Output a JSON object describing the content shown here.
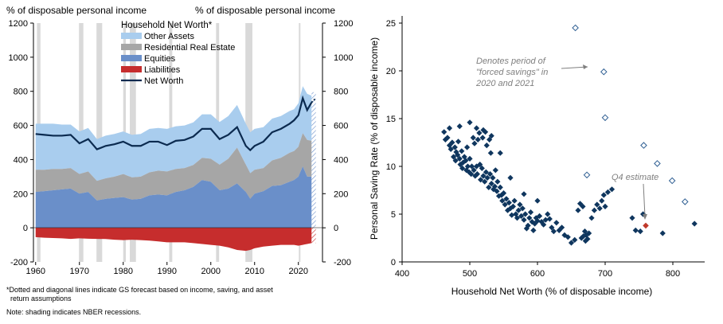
{
  "left": {
    "ylabel_left": "% of disposable personal income",
    "ylabel_right": "% of disposable personal income",
    "legend_title": "Household Net Worth*",
    "y_ticks": [
      "1200",
      "1000",
      "800",
      "600",
      "400",
      "200",
      "0",
      "-200"
    ],
    "x_ticks": [
      "1960",
      "1970",
      "1980",
      "1990",
      "2000",
      "2010",
      "2020"
    ],
    "footnote_1": "*Dotted and diagonal lines indicate GS forecast based on income, saving, and asset",
    "footnote_2": "return assumptions",
    "footnote_3": "Note: shading indicates NBER recessions.",
    "colors": {
      "other_assets": "#a9cdee",
      "real_estate": "#a6a6a6",
      "equities": "#6a8fc9",
      "liabilities": "#c62d2d",
      "net_worth": "#0b2a4f",
      "recession": "#d9d9d9"
    }
  },
  "chart_data": [
    {
      "type": "area",
      "title": "Household Net Worth*",
      "xlabel": "",
      "ylabel": "% of disposable personal income",
      "xlim": [
        1959.5,
        2025.5
      ],
      "ylim": [
        -200,
        1200
      ],
      "recessions": [
        [
          1960.3,
          1961.1
        ],
        [
          1969.9,
          1970.9
        ],
        [
          1973.9,
          1975.2
        ],
        [
          1980.0,
          1980.6
        ],
        [
          1981.5,
          1982.9
        ],
        [
          1990.5,
          1991.2
        ],
        [
          2001.2,
          2001.9
        ],
        [
          2007.9,
          2009.5
        ],
        [
          2020.1,
          2020.4
        ]
      ],
      "x": [
        1960,
        1962,
        1964,
        1966,
        1968,
        1970,
        1972,
        1974,
        1976,
        1978,
        1980,
        1982,
        1984,
        1986,
        1988,
        1990,
        1992,
        1994,
        1996,
        1998,
        2000,
        2002,
        2004,
        2006,
        2008,
        2009,
        2010,
        2012,
        2014,
        2016,
        2018,
        2019,
        2020,
        2021,
        2022,
        2023
      ],
      "series": [
        {
          "name": "Equities",
          "values": [
            210,
            215,
            220,
            225,
            230,
            200,
            210,
            160,
            170,
            175,
            180,
            165,
            170,
            190,
            195,
            190,
            210,
            220,
            240,
            280,
            270,
            220,
            230,
            260,
            210,
            170,
            200,
            215,
            245,
            250,
            270,
            280,
            300,
            360,
            300,
            300
          ]
        },
        {
          "name": "Residential Real Estate",
          "values": [
            130,
            125,
            125,
            120,
            120,
            115,
            120,
            115,
            120,
            125,
            135,
            130,
            130,
            135,
            140,
            140,
            135,
            130,
            128,
            130,
            135,
            150,
            175,
            210,
            160,
            150,
            140,
            135,
            150,
            160,
            170,
            170,
            175,
            195,
            215,
            210
          ]
        },
        {
          "name": "Other Assets",
          "values": [
            270,
            270,
            265,
            260,
            255,
            250,
            255,
            245,
            250,
            250,
            250,
            250,
            250,
            255,
            250,
            250,
            250,
            250,
            250,
            255,
            260,
            250,
            250,
            250,
            240,
            240,
            240,
            240,
            245,
            245,
            245,
            245,
            255,
            275,
            270,
            265
          ]
        },
        {
          "name": "Liabilities",
          "values": [
            -55,
            -58,
            -60,
            -62,
            -65,
            -62,
            -64,
            -65,
            -66,
            -70,
            -72,
            -70,
            -72,
            -75,
            -80,
            -85,
            -85,
            -85,
            -90,
            -95,
            -100,
            -105,
            -115,
            -130,
            -135,
            -130,
            -120,
            -110,
            -105,
            -100,
            -100,
            -100,
            -105,
            -100,
            -95,
            -90
          ]
        },
        {
          "name": "Net Worth",
          "values": [
            550,
            545,
            540,
            540,
            545,
            495,
            520,
            460,
            480,
            490,
            505,
            480,
            480,
            505,
            505,
            485,
            510,
            515,
            535,
            580,
            580,
            520,
            545,
            590,
            480,
            455,
            480,
            505,
            560,
            580,
            610,
            630,
            660,
            760,
            690,
            735
          ]
        }
      ],
      "forecast": {
        "x": [
          2023,
          2024
        ],
        "net_worth_values": [
          735,
          760
        ]
      }
    },
    {
      "type": "scatter",
      "title": "",
      "xlabel": "Household Net Worth (% of disposable income)",
      "ylabel": "Personal Saving Rate (% of disposable income)",
      "xlim": [
        400,
        850
      ],
      "ylim": [
        0,
        25
      ],
      "x_ticks": [
        "400",
        "500",
        "600",
        "700",
        "800"
      ],
      "y_ticks": [
        "0",
        "5",
        "10",
        "15",
        "20",
        "25"
      ],
      "annotation_forced": "Denotes period of \"forced savings\" in 2020 and 2021",
      "annotation_forced_lines": [
        "Denotes period of",
        "\"forced savings\" in",
        "2020 and 2021"
      ],
      "annotation_estimate": "Q4 estimate",
      "main_points": [
        [
          462,
          13.6
        ],
        [
          464,
          12.8
        ],
        [
          467,
          13.0
        ],
        [
          470,
          12.2
        ],
        [
          472,
          11.8
        ],
        [
          474,
          12.5
        ],
        [
          476,
          11.0
        ],
        [
          478,
          12.0
        ],
        [
          479,
          10.6
        ],
        [
          480,
          11.5
        ],
        [
          482,
          11.2
        ],
        [
          483,
          12.6
        ],
        [
          485,
          10.8
        ],
        [
          486,
          10.2
        ],
        [
          488,
          11.6
        ],
        [
          489,
          9.8
        ],
        [
          490,
          10.4
        ],
        [
          492,
          11.0
        ],
        [
          494,
          10.6
        ],
        [
          495,
          9.6
        ],
        [
          496,
          12.0
        ],
        [
          497,
          10.0
        ],
        [
          499,
          9.4
        ],
        [
          500,
          10.8
        ],
        [
          502,
          9.2
        ],
        [
          503,
          10.0
        ],
        [
          505,
          13.0
        ],
        [
          506,
          9.6
        ],
        [
          507,
          12.4
        ],
        [
          508,
          9.0
        ],
        [
          510,
          10.0
        ],
        [
          511,
          9.2
        ],
        [
          512,
          12.8
        ],
        [
          514,
          13.5
        ],
        [
          515,
          10.2
        ],
        [
          516,
          8.6
        ],
        [
          518,
          9.8
        ],
        [
          519,
          13.0
        ],
        [
          520,
          9.0
        ],
        [
          522,
          8.4
        ],
        [
          523,
          13.6
        ],
        [
          524,
          9.4
        ],
        [
          525,
          12.2
        ],
        [
          526,
          8.8
        ],
        [
          528,
          7.8
        ],
        [
          529,
          12.8
        ],
        [
          530,
          9.2
        ],
        [
          531,
          11.4
        ],
        [
          532,
          8.2
        ],
        [
          534,
          8.8
        ],
        [
          535,
          7.6
        ],
        [
          537,
          7.9
        ],
        [
          538,
          9.6
        ],
        [
          540,
          7.4
        ],
        [
          541,
          8.4
        ],
        [
          543,
          6.9
        ],
        [
          545,
          7.8
        ],
        [
          547,
          7.0
        ],
        [
          548,
          6.4
        ],
        [
          550,
          7.2
        ],
        [
          552,
          6.0
        ],
        [
          554,
          6.6
        ],
        [
          556,
          5.4
        ],
        [
          558,
          6.2
        ],
        [
          560,
          5.6
        ],
        [
          562,
          4.9
        ],
        [
          564,
          5.8
        ],
        [
          566,
          6.4
        ],
        [
          568,
          5.0
        ],
        [
          570,
          4.6
        ],
        [
          572,
          5.4
        ],
        [
          574,
          6.0
        ],
        [
          576,
          4.8
        ],
        [
          578,
          5.6
        ],
        [
          580,
          4.4
        ],
        [
          582,
          5.0
        ],
        [
          584,
          3.5
        ],
        [
          586,
          3.8
        ],
        [
          588,
          4.6
        ],
        [
          590,
          5.2
        ],
        [
          592,
          4.2
        ],
        [
          594,
          3.3
        ],
        [
          596,
          4.0
        ],
        [
          598,
          4.6
        ],
        [
          600,
          4.3
        ],
        [
          603,
          4.8
        ],
        [
          606,
          4.2
        ],
        [
          609,
          3.9
        ],
        [
          612,
          4.4
        ],
        [
          615,
          5.0
        ],
        [
          618,
          4.5
        ],
        [
          621,
          3.6
        ],
        [
          624,
          3.2
        ],
        [
          628,
          4.1
        ],
        [
          632,
          3.3
        ],
        [
          636,
          3.6
        ],
        [
          640,
          2.8
        ],
        [
          645,
          2.6
        ],
        [
          650,
          2.0
        ],
        [
          655,
          2.3
        ],
        [
          660,
          5.4
        ],
        [
          663,
          6.1
        ],
        [
          665,
          2.5
        ],
        [
          667,
          5.8
        ],
        [
          668,
          2.7
        ],
        [
          670,
          3.2
        ],
        [
          671,
          2.2
        ],
        [
          672,
          2.8
        ],
        [
          674,
          2.4
        ],
        [
          676,
          3.0
        ],
        [
          680,
          4.6
        ],
        [
          684,
          5.4
        ],
        [
          688,
          6.0
        ],
        [
          692,
          5.6
        ],
        [
          695,
          6.4
        ],
        [
          698,
          7.0
        ],
        [
          700,
          5.8
        ],
        [
          704,
          7.3
        ],
        [
          710,
          7.6
        ],
        [
          740,
          4.6
        ],
        [
          745,
          3.3
        ],
        [
          752,
          3.2
        ],
        [
          756,
          5.0
        ],
        [
          785,
          3.0
        ],
        [
          832,
          4.0
        ],
        [
          470,
          14.0
        ],
        [
          485,
          14.2
        ],
        [
          500,
          14.6
        ],
        [
          510,
          14.0
        ],
        [
          520,
          13.8
        ],
        [
          532,
          13.2
        ],
        [
          545,
          11.4
        ],
        [
          560,
          8.8
        ],
        [
          580,
          7.1
        ],
        [
          600,
          6.4
        ]
      ],
      "forced_points": [
        [
          656,
          24.5
        ],
        [
          698,
          19.9
        ],
        [
          700,
          15.1
        ],
        [
          673,
          9.1
        ],
        [
          757,
          12.2
        ],
        [
          777,
          10.3
        ],
        [
          799,
          8.5
        ],
        [
          818,
          6.3
        ]
      ],
      "estimate_point": [
        760,
        3.8
      ],
      "colors": {
        "main": "#0f365e",
        "forced": "#2f5f93",
        "estimate": "#c0392b",
        "annotation": "#7f7f7f"
      }
    }
  ]
}
